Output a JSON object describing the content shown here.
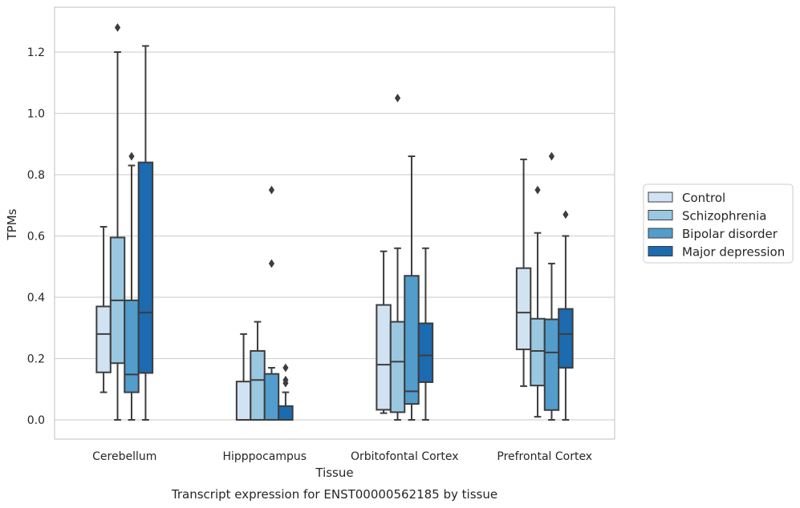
{
  "chart_data": {
    "type": "box",
    "title": "",
    "xlabel": "Tissue",
    "ylabel": "TPMs",
    "caption": "Transcript expression for ENST00000562185 by tissue",
    "categories": [
      "Cerebellum",
      "Hipppocampus",
      "Orbitofontal Cortex",
      "Prefrontal Cortex"
    ],
    "yticks": [
      "0.0",
      "0.2",
      "0.4",
      "0.6",
      "0.8",
      "1.0",
      "1.2"
    ],
    "ylim": [
      -0.06,
      1.35
    ],
    "grid": true,
    "legend_position": "right",
    "series": [
      {
        "name": "Control",
        "color": "#d1e2f2",
        "boxes": [
          {
            "whislo": 0.09,
            "q1": 0.155,
            "med": 0.28,
            "q3": 0.37,
            "whishi": 0.63,
            "fliers": []
          },
          {
            "whislo": 0.0,
            "q1": 0.0,
            "med": 0.0,
            "q3": 0.125,
            "whishi": 0.28,
            "fliers": []
          },
          {
            "whislo": 0.022,
            "q1": 0.033,
            "med": 0.18,
            "q3": 0.375,
            "whishi": 0.55,
            "fliers": []
          },
          {
            "whislo": 0.11,
            "q1": 0.23,
            "med": 0.35,
            "q3": 0.495,
            "whishi": 0.85,
            "fliers": []
          }
        ]
      },
      {
        "name": "Schizophrenia",
        "color": "#9ac8e0",
        "boxes": [
          {
            "whislo": 0.0,
            "q1": 0.185,
            "med": 0.39,
            "q3": 0.595,
            "whishi": 1.2,
            "fliers": [
              1.28
            ]
          },
          {
            "whislo": 0.0,
            "q1": 0.0,
            "med": 0.13,
            "q3": 0.225,
            "whishi": 0.32,
            "fliers": []
          },
          {
            "whislo": 0.0,
            "q1": 0.025,
            "med": 0.19,
            "q3": 0.32,
            "whishi": 0.56,
            "fliers": [
              1.05
            ]
          },
          {
            "whislo": 0.01,
            "q1": 0.112,
            "med": 0.225,
            "q3": 0.33,
            "whishi": 0.61,
            "fliers": [
              0.75
            ]
          }
        ]
      },
      {
        "name": "Bipolar disorder",
        "color": "#529dcc",
        "boxes": [
          {
            "whislo": 0.0,
            "q1": 0.09,
            "med": 0.148,
            "q3": 0.39,
            "whishi": 0.83,
            "fliers": [
              0.86
            ]
          },
          {
            "whislo": 0.0,
            "q1": 0.0,
            "med": 0.0,
            "q3": 0.15,
            "whishi": 0.17,
            "fliers": [
              0.51,
              0.75
            ]
          },
          {
            "whislo": 0.0,
            "q1": 0.052,
            "med": 0.093,
            "q3": 0.47,
            "whishi": 0.86,
            "fliers": []
          },
          {
            "whislo": 0.0,
            "q1": 0.032,
            "med": 0.22,
            "q3": 0.328,
            "whishi": 0.51,
            "fliers": [
              0.86
            ]
          }
        ]
      },
      {
        "name": "Major depression",
        "color": "#1c6aaf",
        "boxes": [
          {
            "whislo": 0.0,
            "q1": 0.153,
            "med": 0.35,
            "q3": 0.84,
            "whishi": 1.22,
            "fliers": []
          },
          {
            "whislo": 0.0,
            "q1": 0.0,
            "med": 0.0,
            "q3": 0.045,
            "whishi": 0.09,
            "fliers": [
              0.12,
              0.13,
              0.17
            ]
          },
          {
            "whislo": 0.0,
            "q1": 0.123,
            "med": 0.21,
            "q3": 0.315,
            "whishi": 0.56,
            "fliers": []
          },
          {
            "whislo": 0.0,
            "q1": 0.17,
            "med": 0.28,
            "q3": 0.362,
            "whishi": 0.6,
            "fliers": [
              0.67
            ]
          }
        ]
      }
    ]
  }
}
